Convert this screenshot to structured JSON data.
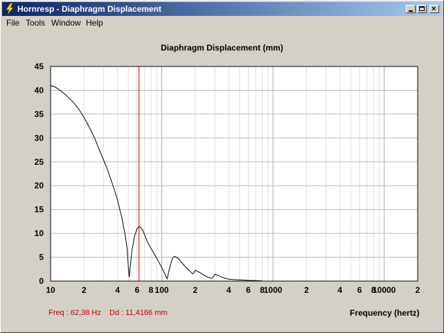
{
  "window": {
    "title": "Hornresp - Diaphragm Displacement"
  },
  "menu": [
    "File",
    "Tools",
    "Window",
    "Help"
  ],
  "readout": {
    "freq": "Freq : 62,38 Hz",
    "dd": "Dd : 11,4166 mm"
  },
  "colors": {
    "cursor": "#c00000",
    "curve": "#000000",
    "grid": "#c0c0c0"
  },
  "chart_data": {
    "type": "line",
    "title": "Diaphragm Displacement (mm)",
    "xlabel": "Frequency (hertz)",
    "ylabel": "",
    "x_scale": "log",
    "xlim": [
      10,
      20000
    ],
    "ylim": [
      0,
      45
    ],
    "y_ticks": [
      "45",
      "40",
      "35",
      "30",
      "25",
      "20",
      "15",
      "10",
      "5",
      "0"
    ],
    "x_ticks": [
      {
        "value": 10,
        "label": "10"
      },
      {
        "value": 20,
        "label": "2"
      },
      {
        "value": 40,
        "label": "4"
      },
      {
        "value": 60,
        "label": "6"
      },
      {
        "value": 80,
        "label": "8"
      },
      {
        "value": 100,
        "label": "100"
      },
      {
        "value": 200,
        "label": "2"
      },
      {
        "value": 400,
        "label": "4"
      },
      {
        "value": 600,
        "label": "6"
      },
      {
        "value": 800,
        "label": "8"
      },
      {
        "value": 1000,
        "label": "1000"
      },
      {
        "value": 2000,
        "label": "2"
      },
      {
        "value": 4000,
        "label": "4"
      },
      {
        "value": 6000,
        "label": "6"
      },
      {
        "value": 8000,
        "label": "8"
      },
      {
        "value": 10000,
        "label": "10000"
      },
      {
        "value": 20000,
        "label": "2"
      }
    ],
    "cursor_x": 62.38,
    "series": [
      {
        "x": [
          10,
          11,
          12,
          13,
          14,
          16,
          18,
          20,
          22,
          25,
          28,
          32,
          36,
          40,
          44,
          47,
          49,
          50,
          51,
          52,
          54,
          57,
          60,
          62.38,
          65,
          68,
          72,
          76,
          80,
          85,
          90,
          95,
          100,
          105,
          110,
          112,
          115,
          120,
          125,
          130,
          135,
          140,
          150,
          160,
          170,
          180,
          190,
          195,
          200,
          210,
          220,
          240,
          260,
          280,
          290,
          300,
          310,
          320,
          340,
          370,
          400,
          450,
          500,
          550,
          600,
          700,
          800
        ],
        "y": [
          41,
          40.7,
          40.1,
          39.5,
          38.8,
          37.5,
          36,
          34.3,
          32.5,
          29.9,
          27,
          23.8,
          20.4,
          17,
          13,
          9.5,
          6.5,
          3,
          0.8,
          3,
          6.5,
          9.5,
          11,
          11.4,
          11.2,
          10.5,
          9,
          7.8,
          6.9,
          5.8,
          4.8,
          3.8,
          2.8,
          1.8,
          0.8,
          0.5,
          1.8,
          3.5,
          4.8,
          5.2,
          5,
          4.8,
          4,
          3.2,
          2.6,
          2,
          1.5,
          1.8,
          2.3,
          2,
          1.8,
          1.2,
          0.8,
          0.6,
          0.8,
          1.5,
          1.3,
          1.2,
          0.9,
          0.6,
          0.4,
          0.3,
          0.25,
          0.2,
          0.15,
          0.1,
          0.05
        ]
      }
    ]
  }
}
